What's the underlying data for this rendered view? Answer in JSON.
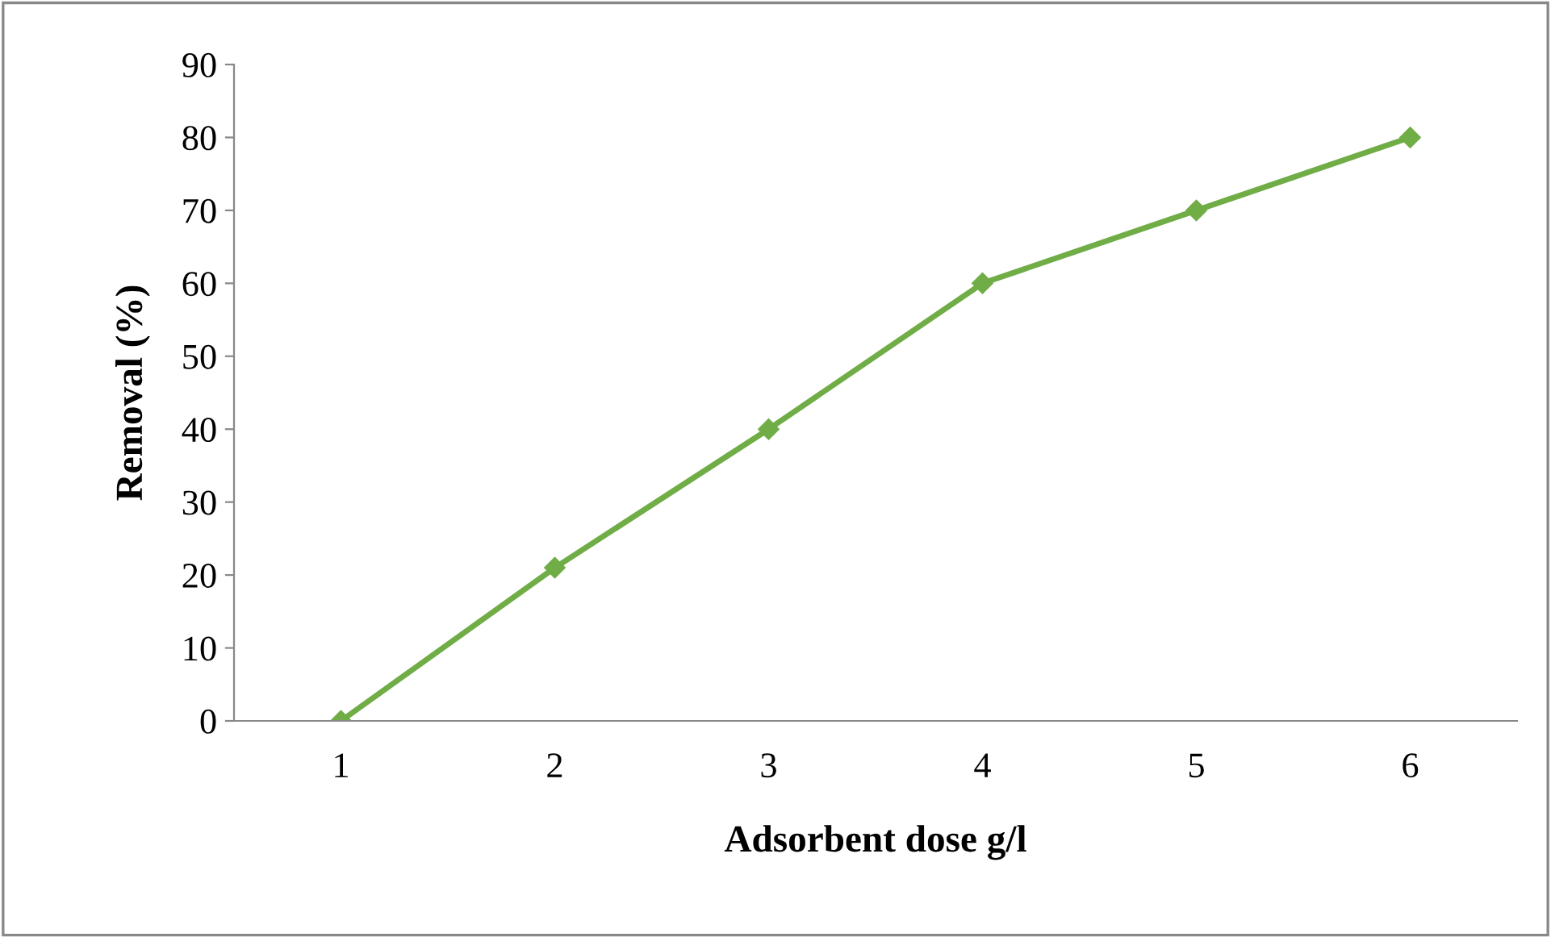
{
  "chart_data": {
    "type": "line",
    "xlabel": "Adsorbent dose g/l",
    "ylabel": "Removal (%)",
    "categories": [
      "1",
      "2",
      "3",
      "4",
      "5",
      "6"
    ],
    "series": [
      {
        "color": "#70ad47",
        "values": [
          0,
          21,
          40,
          60,
          70,
          80
        ]
      }
    ],
    "ylim": [
      0,
      90
    ],
    "yticks": [
      0,
      10,
      20,
      30,
      40,
      50,
      60,
      70,
      80,
      90
    ],
    "marker": "diamond",
    "line_style": "solid",
    "grid": false,
    "legend": false
  }
}
